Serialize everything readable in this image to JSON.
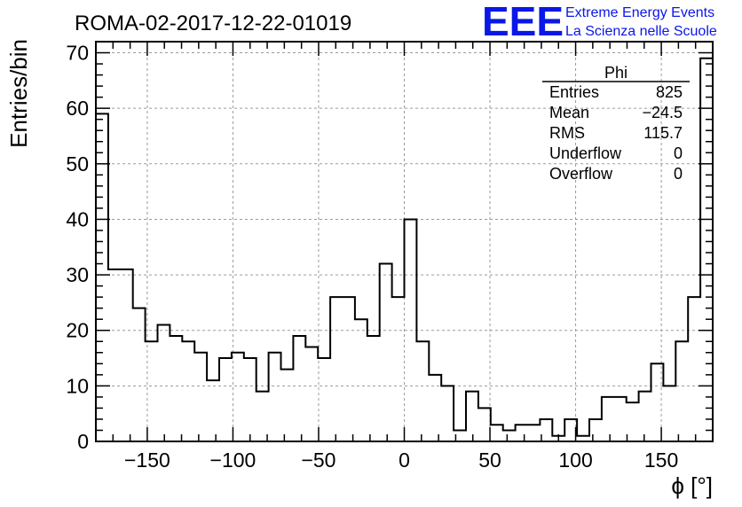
{
  "header": {
    "run_title": "ROMA-02-2017-12-22-01019"
  },
  "logo": {
    "mark": "EEE",
    "line1": "Extreme Energy Events",
    "line2": "La Scienza nelle Scuole",
    "color": "#0a17e6"
  },
  "stats_box": {
    "title": "Phi",
    "rows": [
      {
        "label": "Entries",
        "value": "825"
      },
      {
        "label": "Mean",
        "value": "−24.5"
      },
      {
        "label": "RMS",
        "value": "115.7"
      },
      {
        "label": "Underflow",
        "value": "0"
      },
      {
        "label": "Overflow",
        "value": "0"
      }
    ]
  },
  "chart_data": {
    "type": "histogram",
    "title": "ROMA-02-2017-12-22-01019",
    "xlabel": "ϕ [°]",
    "ylabel": "Entries/bin",
    "xlim": [
      -180,
      180
    ],
    "ylim": [
      0,
      72
    ],
    "grid": true,
    "bin_width": 7.2,
    "bin_edges_start": -180,
    "values": [
      59,
      31,
      31,
      24,
      18,
      21,
      19,
      18,
      16,
      11,
      15,
      16,
      15,
      9,
      16,
      13,
      19,
      17,
      15,
      26,
      26,
      22,
      19,
      32,
      26,
      40,
      18,
      12,
      10,
      2,
      9,
      6,
      3,
      2,
      3,
      3,
      4,
      1,
      4,
      1,
      4,
      8,
      8,
      7,
      9,
      14,
      10,
      18,
      26,
      69
    ],
    "x_ticks": [
      -150,
      -100,
      -50,
      0,
      50,
      100,
      150
    ],
    "x_tick_labels": [
      "−150",
      "−100",
      "−50",
      "0",
      "50",
      "100",
      "150"
    ],
    "y_ticks": [
      0,
      10,
      20,
      30,
      40,
      50,
      60,
      70
    ],
    "y_tick_labels": [
      "0",
      "10",
      "20",
      "30",
      "40",
      "50",
      "60",
      "70"
    ],
    "line_color": "#000000"
  }
}
